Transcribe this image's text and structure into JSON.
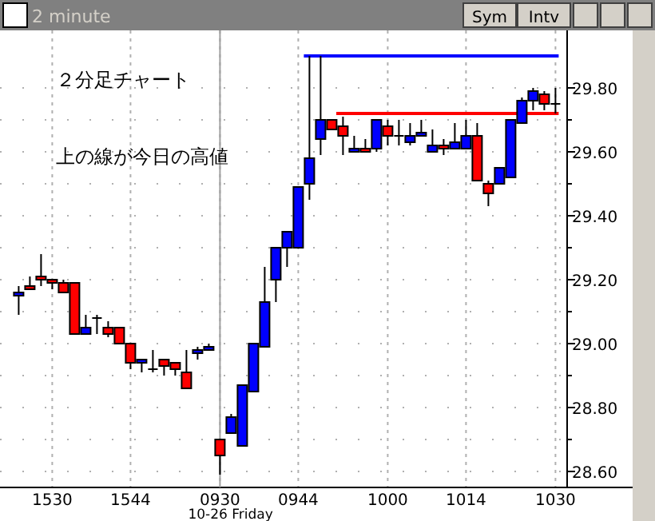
{
  "chart_data": {
    "type": "candlestick",
    "title": "2 minute",
    "annotations": [
      "２分足チャート",
      "上の線が今日の高値",
      "10-26 Friday",
      "Sym",
      "Intv"
    ],
    "categories": [
      null,
      null,
      null,
      "1530",
      null,
      null,
      null,
      null,
      null,
      null,
      "1544",
      null,
      null,
      null,
      null,
      null,
      null,
      null,
      "0930",
      null,
      null,
      null,
      null,
      null,
      null,
      "0944",
      null,
      null,
      null,
      null,
      null,
      null,
      null,
      "1000",
      null,
      null,
      null,
      null,
      null,
      null,
      "1014",
      null,
      null,
      null,
      null,
      null,
      null,
      null,
      "1030"
    ],
    "ohlc": [
      [
        29.15,
        29.18,
        29.09,
        29.16
      ],
      [
        29.18,
        29.21,
        29.17,
        29.17
      ],
      [
        29.21,
        29.28,
        29.18,
        29.2
      ],
      [
        29.2,
        29.2,
        29.17,
        29.19
      ],
      [
        29.19,
        29.2,
        29.16,
        29.16
      ],
      [
        29.19,
        29.19,
        29.03,
        29.03
      ],
      [
        29.03,
        29.09,
        29.03,
        29.05
      ],
      [
        29.08,
        29.09,
        29.03,
        29.08
      ],
      [
        29.05,
        29.07,
        29.02,
        29.03
      ],
      [
        29.05,
        29.05,
        29.0,
        29.0
      ],
      [
        29.0,
        29.0,
        28.92,
        28.94
      ],
      [
        28.94,
        28.95,
        28.91,
        28.95
      ],
      [
        28.92,
        28.98,
        28.91,
        28.92
      ],
      [
        28.95,
        28.95,
        28.9,
        28.93
      ],
      [
        28.94,
        28.94,
        28.9,
        28.92
      ],
      [
        28.91,
        28.98,
        28.86,
        28.86
      ],
      [
        28.97,
        28.99,
        28.95,
        28.98
      ],
      [
        28.98,
        29.0,
        28.98,
        28.99
      ],
      [
        28.7,
        28.7,
        28.59,
        28.65
      ],
      [
        28.72,
        28.78,
        28.72,
        28.77
      ],
      [
        28.68,
        28.87,
        28.68,
        28.87
      ],
      [
        28.85,
        29.0,
        28.85,
        29.0
      ],
      [
        28.99,
        29.24,
        28.99,
        29.13
      ],
      [
        29.2,
        29.3,
        29.13,
        29.3
      ],
      [
        29.3,
        29.35,
        29.24,
        29.35
      ],
      [
        29.3,
        29.49,
        29.3,
        29.49
      ],
      [
        29.5,
        29.9,
        29.45,
        29.58
      ],
      [
        29.64,
        29.9,
        29.59,
        29.7
      ],
      [
        29.7,
        29.7,
        29.67,
        29.67
      ],
      [
        29.68,
        29.71,
        29.59,
        29.65
      ],
      [
        29.6,
        29.65,
        29.6,
        29.61
      ],
      [
        29.61,
        29.64,
        29.6,
        29.6
      ],
      [
        29.61,
        29.7,
        29.6,
        29.7
      ],
      [
        29.68,
        29.7,
        29.62,
        29.65
      ],
      [
        29.65,
        29.7,
        29.62,
        29.65
      ],
      [
        29.63,
        29.69,
        29.62,
        29.65
      ],
      [
        29.65,
        29.7,
        29.65,
        29.66
      ],
      [
        29.6,
        29.67,
        29.6,
        29.62
      ],
      [
        29.62,
        29.64,
        29.59,
        29.61
      ],
      [
        29.61,
        29.69,
        29.61,
        29.63
      ],
      [
        29.61,
        29.7,
        29.61,
        29.65
      ],
      [
        29.65,
        29.69,
        29.51,
        29.51
      ],
      [
        29.5,
        29.51,
        29.43,
        29.47
      ],
      [
        29.5,
        29.55,
        29.5,
        29.55
      ],
      [
        29.52,
        29.7,
        29.52,
        29.7
      ],
      [
        29.69,
        29.77,
        29.69,
        29.76
      ],
      [
        29.76,
        29.8,
        29.73,
        29.79
      ],
      [
        29.78,
        29.79,
        29.73,
        29.75
      ],
      [
        29.75,
        29.8,
        29.72,
        29.75
      ]
    ],
    "colors": [
      "#0000ff",
      "#ff0000",
      "#ff0000",
      "#ff0000",
      "#ff0000",
      "#ff0000",
      "#0000ff",
      "#000000",
      "#ff0000",
      "#ff0000",
      "#ff0000",
      "#0000ff",
      "#000000",
      "#ff0000",
      "#ff0000",
      "#ff0000",
      "#0000ff",
      "#0000ff",
      "#ff0000",
      "#0000ff",
      "#0000ff",
      "#0000ff",
      "#0000ff",
      "#0000ff",
      "#0000ff",
      "#0000ff",
      "#0000ff",
      "#0000ff",
      "#ff0000",
      "#ff0000",
      "#0000ff",
      "#ff0000",
      "#0000ff",
      "#ff0000",
      "#000000",
      "#0000ff",
      "#0000ff",
      "#0000ff",
      "#ff0000",
      "#0000ff",
      "#0000ff",
      "#ff0000",
      "#ff0000",
      "#0000ff",
      "#0000ff",
      "#0000ff",
      "#0000ff",
      "#ff0000",
      "#000000"
    ],
    "ylim": [
      28.55,
      29.98
    ],
    "yticks": [
      {
        "value": 28.6,
        "label": "28.60"
      },
      {
        "value": 28.7,
        "label": null
      },
      {
        "value": 28.8,
        "label": "28.80"
      },
      {
        "value": 28.9,
        "label": null
      },
      {
        "value": 29.0,
        "label": "29.00"
      },
      {
        "value": 29.1,
        "label": null
      },
      {
        "value": 29.2,
        "label": "29.20"
      },
      {
        "value": 29.3,
        "label": null
      },
      {
        "value": 29.4,
        "label": "29.40"
      },
      {
        "value": 29.5,
        "label": null
      },
      {
        "value": 29.6,
        "label": "29.60"
      },
      {
        "value": 29.7,
        "label": null
      },
      {
        "value": 29.8,
        "label": "29.80"
      }
    ],
    "ref_lines": [
      {
        "axis": "y",
        "value": 29.9,
        "color": "#0000ff"
      },
      {
        "axis": "y",
        "value": 29.72,
        "color": "#ff0000"
      }
    ],
    "grid": true
  }
}
